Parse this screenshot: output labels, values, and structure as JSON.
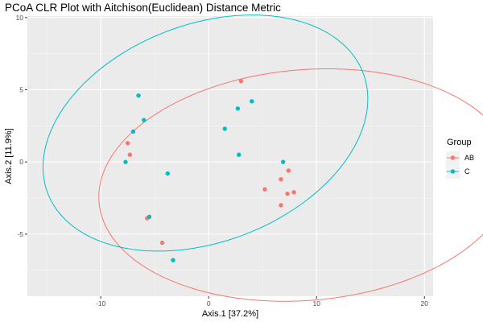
{
  "chart_data": {
    "type": "scatter",
    "title": "PCoA CLR Plot with Aitchison(Euclidean) Distance Metric",
    "xlabel": "Axis.1   [37.2%]",
    "ylabel": "Axis.2   [11.9%]",
    "xlim": [
      -16.8,
      20.8
    ],
    "ylim": [
      -9.3,
      10.1
    ],
    "xticks": [
      -10,
      0,
      10,
      20
    ],
    "xtick_labels": [
      "-10",
      "0",
      "10",
      "20"
    ],
    "yticks": [
      -5,
      0,
      5,
      10
    ],
    "ytick_labels": [
      "-5",
      "0",
      "5",
      "10"
    ],
    "grid": true,
    "legend": {
      "title": "Group",
      "position": "right"
    },
    "series": [
      {
        "name": "AB",
        "color": "#F8766D",
        "points": [
          [
            -7.5,
            1.3
          ],
          [
            -7.3,
            0.5
          ],
          [
            -5.7,
            -3.9
          ],
          [
            -4.3,
            -5.6
          ],
          [
            3.0,
            5.6
          ],
          [
            5.2,
            -1.9
          ],
          [
            6.7,
            -3.0
          ],
          [
            6.7,
            -1.2
          ],
          [
            7.3,
            -2.2
          ],
          [
            7.4,
            -0.6
          ],
          [
            7.9,
            -2.1
          ]
        ],
        "ellipse": {
          "cx": 9.0,
          "cy": -1.6,
          "rx": 19.2,
          "ry": 8.0,
          "angle_deg": 3
        }
      },
      {
        "name": "C",
        "color": "#00BFC4",
        "points": [
          [
            -7.7,
            0.0
          ],
          [
            -7.0,
            2.1
          ],
          [
            -6.5,
            4.6
          ],
          [
            -6.0,
            2.9
          ],
          [
            -3.8,
            -0.8
          ],
          [
            -5.5,
            -3.8
          ],
          [
            -3.3,
            -6.8
          ],
          [
            1.5,
            2.3
          ],
          [
            2.7,
            3.7
          ],
          [
            2.8,
            0.5
          ],
          [
            4.0,
            4.2
          ],
          [
            6.9,
            0.0
          ]
        ],
        "ellipse": {
          "cx": -0.3,
          "cy": 2.0,
          "rx": 15.3,
          "ry": 7.7,
          "angle_deg": 12
        }
      }
    ]
  }
}
